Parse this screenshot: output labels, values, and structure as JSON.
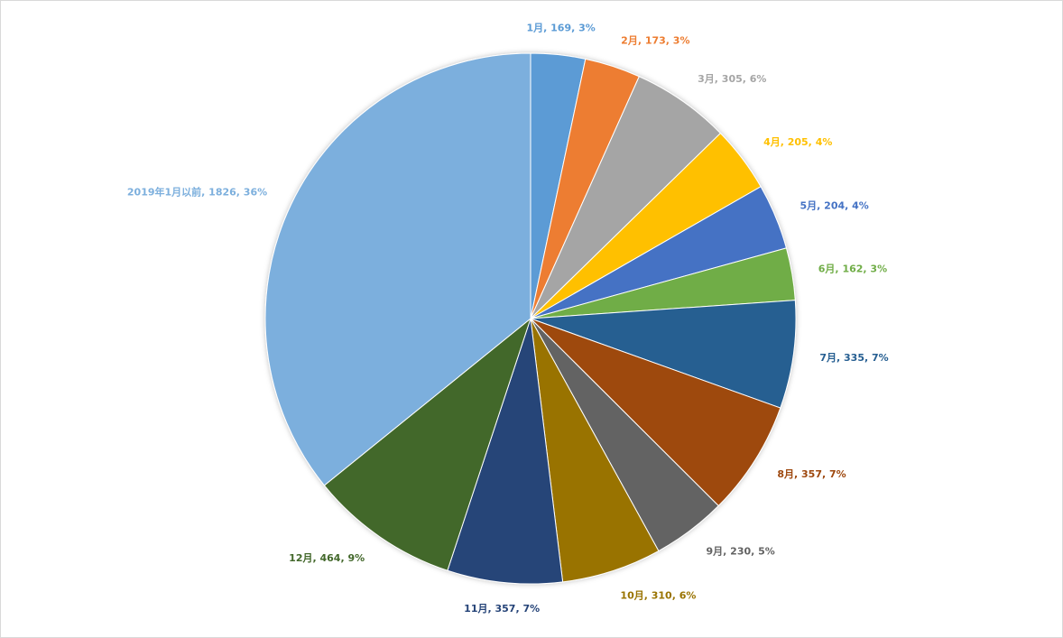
{
  "chart_data": {
    "type": "pie",
    "categories": [
      "1月",
      "2月",
      "3月",
      "4月",
      "5月",
      "6月",
      "7月",
      "8月",
      "9月",
      "10月",
      "11月",
      "12月",
      "2019年1月以前"
    ],
    "values": [
      169,
      173,
      305,
      205,
      204,
      162,
      335,
      357,
      230,
      310,
      357,
      464,
      1826
    ],
    "value_labels": [
      "1月, 169, 3%",
      "2月, 173, 3%",
      "3月, 305, 6%",
      "4月, 205, 4%",
      "5月, 204, 4%",
      "6月, 162, 3%",
      "7月, 335, 7%",
      "8月, 357, 7%",
      "9月, 230, 5%",
      "10月, 310, 6%",
      "11月, 357, 7%",
      "12月, 464, 9%",
      "2019年1月以前, 1826, 36%"
    ],
    "colors": [
      "#5b9bd5",
      "#ed7d31",
      "#a5a5a5",
      "#ffc000",
      "#4472c4",
      "#70ad47",
      "#255e91",
      "#9e480e",
      "#636363",
      "#997300",
      "#264478",
      "#43682b",
      "#7cafdd"
    ]
  }
}
